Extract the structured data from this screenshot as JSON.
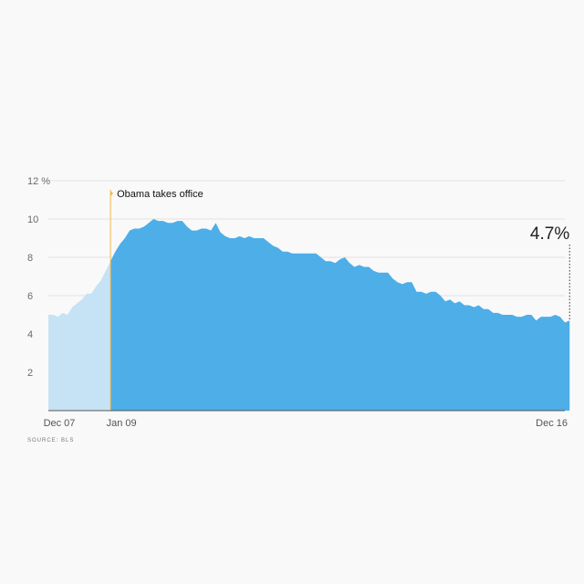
{
  "colors": {
    "before": "#c6e2f5",
    "after": "#4daee8",
    "annotation_line": "#f2b84b",
    "grid": "#e1e1e1",
    "axis": "#555555"
  },
  "source": "SOURCE: BLS",
  "annotation": {
    "label": "Obama takes office",
    "x": "2009-01"
  },
  "end_label": "4.7%",
  "chart_data": {
    "type": "area",
    "title": "",
    "xlabel": "",
    "ylabel": "",
    "y_unit": "%",
    "ylim": [
      0,
      12
    ],
    "xlim": [
      "2007-12",
      "2016-12"
    ],
    "y_ticks": [
      {
        "value": 12,
        "label": "12 %"
      },
      {
        "value": 10,
        "label": "10"
      },
      {
        "value": 8,
        "label": "8"
      },
      {
        "value": 6,
        "label": "6"
      },
      {
        "value": 4,
        "label": "4"
      },
      {
        "value": 2,
        "label": "2"
      }
    ],
    "x_ticks": [
      {
        "value": "2007-12",
        "label": "Dec 07"
      },
      {
        "value": "2009-01",
        "label": "Jan 09"
      },
      {
        "value": "2016-12",
        "label": "Dec 16"
      }
    ],
    "grid": true,
    "series": [
      {
        "start": "2007-12",
        "frequency": "monthly",
        "values": [
          5.0,
          5.0,
          4.9,
          5.1,
          5.0,
          5.4,
          5.6,
          5.8,
          6.1,
          6.1,
          6.5,
          6.8,
          7.3,
          7.8,
          8.3,
          8.7,
          9.0,
          9.4,
          9.5,
          9.5,
          9.6,
          9.8,
          10.0,
          9.9,
          9.9,
          9.8,
          9.8,
          9.9,
          9.9,
          9.6,
          9.4,
          9.4,
          9.5,
          9.5,
          9.4,
          9.8,
          9.3,
          9.1,
          9.0,
          9.0,
          9.1,
          9.0,
          9.1,
          9.0,
          9.0,
          9.0,
          8.8,
          8.6,
          8.5,
          8.3,
          8.3,
          8.2,
          8.2,
          8.2,
          8.2,
          8.2,
          8.2,
          8.0,
          7.8,
          7.8,
          7.7,
          7.9,
          8.0,
          7.7,
          7.5,
          7.6,
          7.5,
          7.5,
          7.3,
          7.2,
          7.2,
          7.2,
          6.9,
          6.7,
          6.6,
          6.7,
          6.7,
          6.2,
          6.2,
          6.1,
          6.2,
          6.2,
          6.0,
          5.7,
          5.8,
          5.6,
          5.7,
          5.5,
          5.5,
          5.4,
          5.5,
          5.3,
          5.3,
          5.1,
          5.1,
          5.0,
          5.0,
          5.0,
          4.9,
          4.9,
          5.0,
          5.0,
          4.7,
          4.9,
          4.9,
          4.9,
          5.0,
          4.9,
          4.6,
          4.7
        ]
      }
    ]
  }
}
